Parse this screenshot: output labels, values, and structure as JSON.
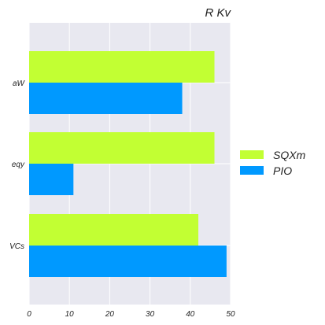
{
  "chart_data": {
    "type": "bar",
    "orientation": "horizontal",
    "title": "R Kv",
    "xlabel": "",
    "ylabel": "",
    "categories": [
      "aW",
      "eqy",
      "VCs"
    ],
    "series": [
      {
        "name": "SQXm",
        "color": "#c2ff33",
        "values": [
          46,
          46,
          42
        ]
      },
      {
        "name": "PIO",
        "color": "#0099ff",
        "values": [
          38,
          11,
          49
        ]
      }
    ],
    "xlim": [
      0,
      50
    ],
    "xticks": [
      "0",
      "10",
      "20",
      "30",
      "40",
      "50"
    ],
    "grid": true,
    "legend_position": "right"
  },
  "style": {
    "plot_background": "#e8e8f0",
    "grid_color": "#ffffff"
  }
}
